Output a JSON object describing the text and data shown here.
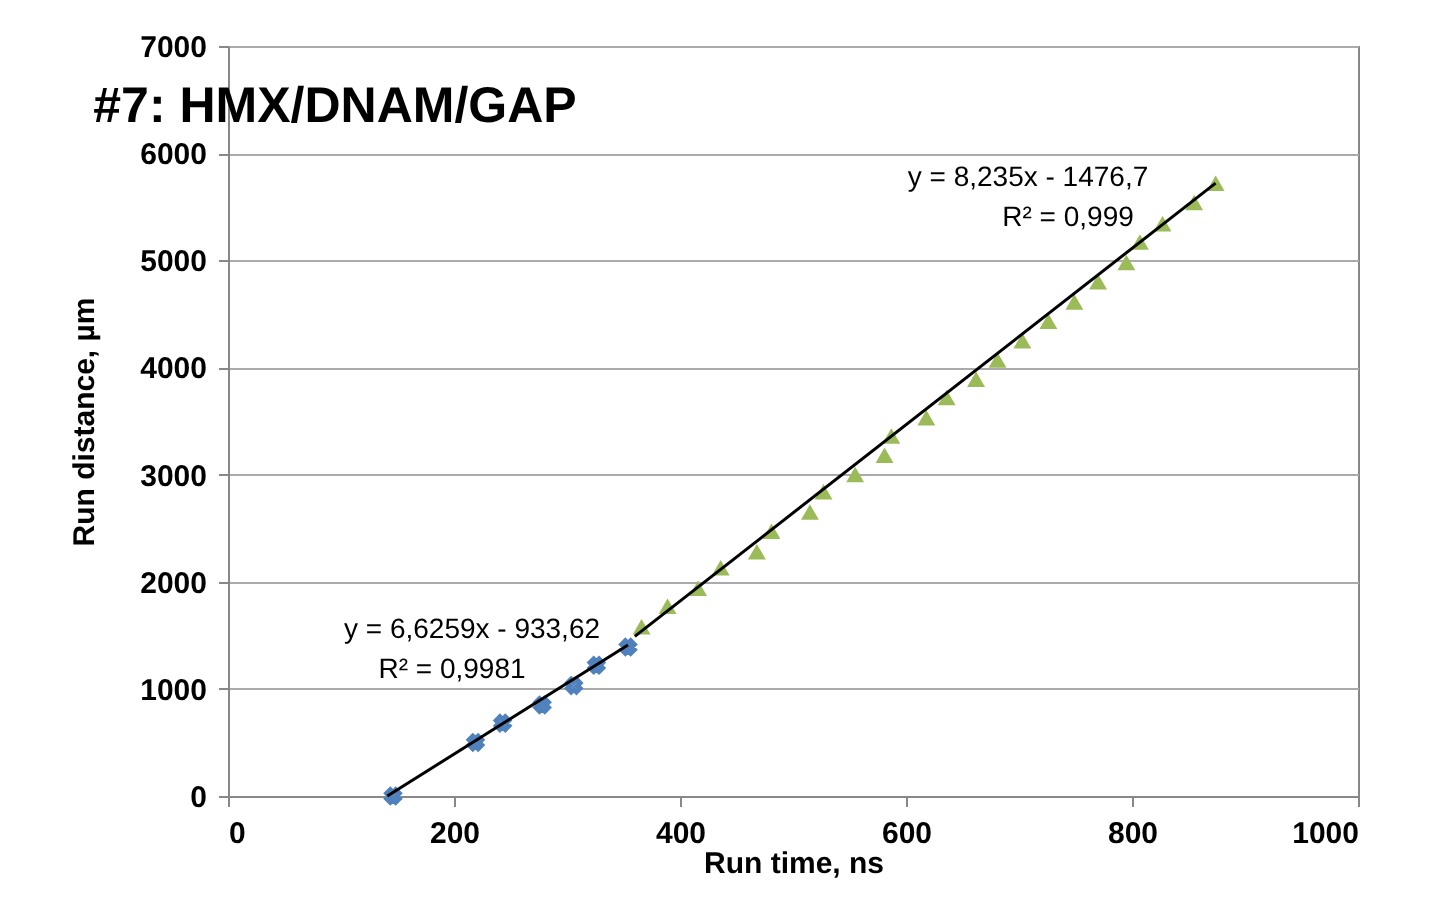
{
  "chart_data": {
    "type": "scatter",
    "title": "#7: HMX/DNAM/GAP",
    "xlabel": "Run time, ns",
    "ylabel": "Run distance, µm",
    "xlim": [
      0,
      1000
    ],
    "xticks": [
      0,
      200,
      400,
      600,
      800,
      1000
    ],
    "ylim": [
      0,
      7000
    ],
    "yticks": [
      0,
      1000,
      2000,
      3000,
      4000,
      5000,
      6000,
      7000
    ],
    "grid": "y",
    "series": [
      {
        "color": "#4f81bd",
        "marker": "cross",
        "x": [
          146,
          219,
          243,
          278,
          306,
          326,
          354
        ],
        "values": [
          0,
          500,
          680,
          850,
          1030,
          1220,
          1390
        ]
      },
      {
        "color": "#9bbb59",
        "marker": "triangle",
        "x": [
          366,
          389,
          416,
          436,
          468,
          481,
          515,
          527,
          555,
          581,
          587,
          618,
          636,
          662,
          681,
          703,
          726,
          749,
          770,
          795,
          807,
          827,
          855,
          874
        ],
        "values": [
          1580,
          1770,
          1940,
          2130,
          2280,
          2470,
          2650,
          2840,
          3000,
          3180,
          3360,
          3530,
          3720,
          3890,
          4070,
          4250,
          4430,
          4610,
          4800,
          4980,
          5170,
          5340,
          5540,
          5720
        ]
      },
      {
        "type": "line",
        "color": "#000000",
        "marker": "none",
        "x": [
          141,
          354
        ],
        "values": [
          0,
          1410
        ]
      },
      {
        "type": "line",
        "color": "#000000",
        "marker": "none",
        "x": [
          360,
          874
        ],
        "values": [
          1490,
          5720
        ]
      }
    ],
    "annotations": [
      "y = 6,6259x - 933,62",
      "R² = 0,9981",
      "y = 8,235x - 1476,7",
      "R² = 0,999"
    ]
  }
}
